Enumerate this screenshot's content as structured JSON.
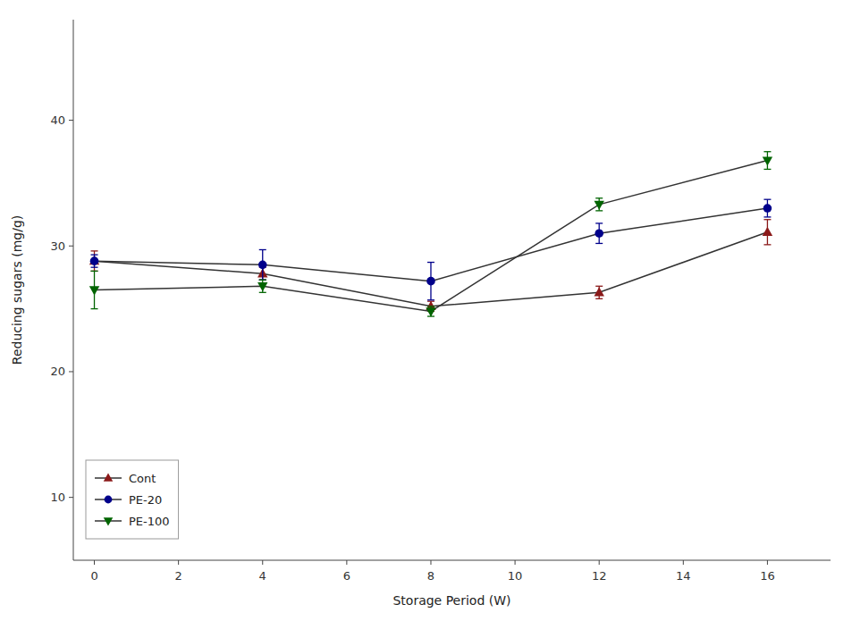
{
  "chart_data": {
    "type": "line",
    "xlabel": "Storage Period (W)",
    "ylabel": "Reducing sugars (mg/g)",
    "x": [
      0,
      4,
      8,
      12,
      16
    ],
    "color": "#333333",
    "series": [
      {
        "name": "Cont",
        "color": "#8B1A1A",
        "marker": "triangle-up",
        "values": [
          28.8,
          27.8,
          25.2,
          26.3,
          31.1
        ],
        "errors": [
          0.8,
          0.5,
          0.4,
          0.5,
          1.0
        ]
      },
      {
        "name": "PE-20",
        "color": "#00008B",
        "marker": "circle",
        "values": [
          28.8,
          28.5,
          27.2,
          31.0,
          33.0
        ],
        "errors": [
          0.5,
          1.2,
          1.5,
          0.8,
          0.7
        ]
      },
      {
        "name": "PE-100",
        "color": "#006400",
        "marker": "triangle-down",
        "values": [
          26.5,
          26.8,
          24.8,
          33.3,
          36.8
        ],
        "errors": [
          1.5,
          0.5,
          0.4,
          0.5,
          0.7
        ]
      }
    ],
    "xlim": [
      -0.5,
      17.5
    ],
    "ylim": [
      5,
      48
    ],
    "xticks": [
      0,
      2,
      4,
      6,
      8,
      10,
      12,
      14,
      16
    ],
    "yticks": [
      10,
      20,
      30,
      40
    ],
    "grid": false,
    "legend": "lower left"
  }
}
